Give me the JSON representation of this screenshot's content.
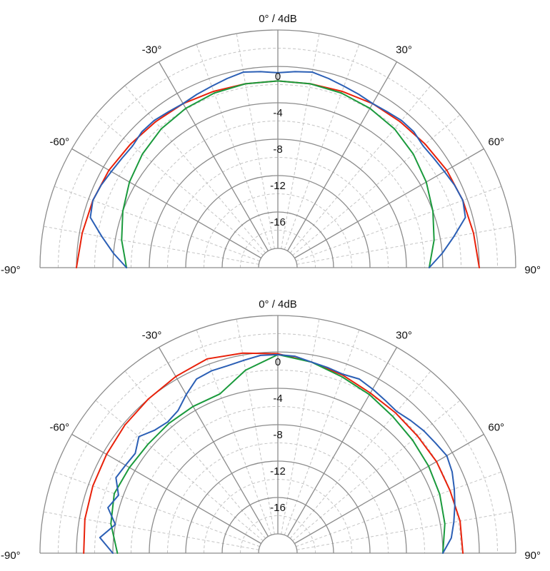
{
  "chart_data": [
    {
      "type": "polar-line",
      "title": "0° / 4dB",
      "angle_labels": [
        "-90°",
        "-60°",
        "-30°",
        "30°",
        "60°",
        "90°"
      ],
      "angle_values": [
        -90,
        -60,
        -30,
        30,
        60,
        90
      ],
      "radial_labels": [
        "0",
        "-4",
        "-8",
        "-12",
        "-16"
      ],
      "radial_values": [
        0,
        -4,
        -8,
        -12,
        -16
      ],
      "rlim": [
        -20,
        4
      ],
      "theta_range": [
        -90,
        90
      ],
      "grid": true,
      "series": [
        {
          "color": "#e8210a",
          "angles": [
            -90,
            -80,
            -70,
            -60,
            -50,
            -40,
            -30,
            -20,
            -10,
            0,
            10,
            20,
            30,
            40,
            50,
            60,
            70,
            80,
            90
          ],
          "values": [
            0.0,
            -0.3,
            -0.5,
            -0.7,
            -1.0,
            -1.2,
            -1.3,
            -1.5,
            -1.6,
            -1.6,
            -1.6,
            -1.5,
            -1.3,
            -1.2,
            -1.0,
            -0.7,
            -0.5,
            -0.3,
            0.0
          ]
        },
        {
          "color": "#1a9a3c",
          "angles": [
            -90,
            -80,
            -70,
            -60,
            -50,
            -40,
            -30,
            -20,
            -10,
            0,
            10,
            20,
            30,
            40,
            50,
            60,
            70,
            80,
            90
          ],
          "values": [
            -5.5,
            -4.7,
            -4.0,
            -3.3,
            -2.7,
            -2.2,
            -1.9,
            -1.7,
            -1.6,
            -1.6,
            -1.6,
            -1.7,
            -1.9,
            -2.2,
            -2.7,
            -3.3,
            -4.0,
            -4.7,
            -5.5
          ]
        },
        {
          "color": "#2b5fb5",
          "angles": [
            -90,
            -85,
            -80,
            -75,
            -70,
            -65,
            -60,
            -55,
            -50,
            -45,
            -40,
            -35,
            -30,
            -25,
            -20,
            -15,
            -10,
            -5,
            0,
            5,
            10,
            15,
            20,
            25,
            30,
            35,
            40,
            45,
            50,
            55,
            60,
            65,
            70,
            75,
            80,
            85,
            90
          ],
          "values": [
            -5.5,
            -4.0,
            -2.5,
            -0.8,
            -0.5,
            -0.7,
            -1.0,
            -1.2,
            -1.3,
            -1.0,
            -1.0,
            -1.2,
            -1.3,
            -1.1,
            -0.9,
            -0.6,
            -0.3,
            -0.5,
            -0.7,
            -0.5,
            -0.3,
            -0.6,
            -0.9,
            -1.1,
            -1.3,
            -1.2,
            -1.0,
            -1.0,
            -1.3,
            -1.2,
            -1.0,
            -0.7,
            -0.5,
            -0.8,
            -2.5,
            -4.0,
            -5.5
          ]
        }
      ]
    },
    {
      "type": "polar-line",
      "title": "0° / 4dB",
      "angle_labels": [
        "-90°",
        "-60°",
        "-30°",
        "30°",
        "60°",
        "90°"
      ],
      "angle_values": [
        -90,
        -60,
        -30,
        30,
        60,
        90
      ],
      "radial_labels": [
        "0",
        "-4",
        "-8",
        "-12",
        "-16"
      ],
      "radial_values": [
        0,
        -4,
        -8,
        -12,
        -16
      ],
      "rlim": [
        -20,
        4
      ],
      "theta_range": [
        -90,
        90
      ],
      "grid": true,
      "series": [
        {
          "color": "#e8210a",
          "angles": [
            -90,
            -80,
            -70,
            -60,
            -50,
            -40,
            -30,
            -20,
            -10,
            0,
            10,
            20,
            30,
            40,
            50,
            60,
            70,
            80,
            90
          ],
          "values": [
            -0.8,
            -0.6,
            -0.5,
            -0.4,
            -0.2,
            0.0,
            0.3,
            0.6,
            0.2,
            -0.2,
            -0.8,
            -1.3,
            -1.8,
            -2.0,
            -2.1,
            -2.0,
            -2.0,
            -1.8,
            -1.8
          ]
        },
        {
          "color": "#1a9a3c",
          "angles": [
            -90,
            -80,
            -70,
            -60,
            -50,
            -40,
            -30,
            -20,
            -10,
            0,
            10,
            20,
            30,
            40,
            50,
            60,
            70,
            80,
            90
          ],
          "values": [
            -4.5,
            -3.5,
            -3.0,
            -3.3,
            -3.5,
            -3.5,
            -3.5,
            -3.5,
            -1.7,
            -0.3,
            -0.8,
            -1.5,
            -2.0,
            -2.5,
            -2.8,
            -3.0,
            -3.2,
            -3.5,
            -4.0
          ]
        },
        {
          "color": "#2b5fb5",
          "angles": [
            -90,
            -85,
            -80,
            -75,
            -70,
            -65,
            -60,
            -55,
            -50,
            -45,
            -40,
            -35,
            -30,
            -25,
            -20,
            -15,
            -10,
            -5,
            0,
            5,
            10,
            15,
            20,
            25,
            30,
            35,
            40,
            45,
            50,
            55,
            60,
            65,
            70,
            75,
            80,
            85,
            90
          ],
          "values": [
            -4.0,
            -2.5,
            -4.0,
            -2.8,
            -3.5,
            -2.5,
            -2.8,
            -3.0,
            -2.2,
            -3.0,
            -3.3,
            -3.0,
            -2.0,
            -1.0,
            -0.8,
            -0.8,
            -0.6,
            -0.3,
            -0.3,
            -0.4,
            -0.8,
            -1.0,
            -1.2,
            -1.0,
            -1.3,
            -1.6,
            -1.8,
            -1.5,
            -1.2,
            -1.0,
            -0.7,
            -1.0,
            -1.5,
            -2.0,
            -2.5,
            -3.0,
            -4.0
          ]
        }
      ]
    }
  ]
}
